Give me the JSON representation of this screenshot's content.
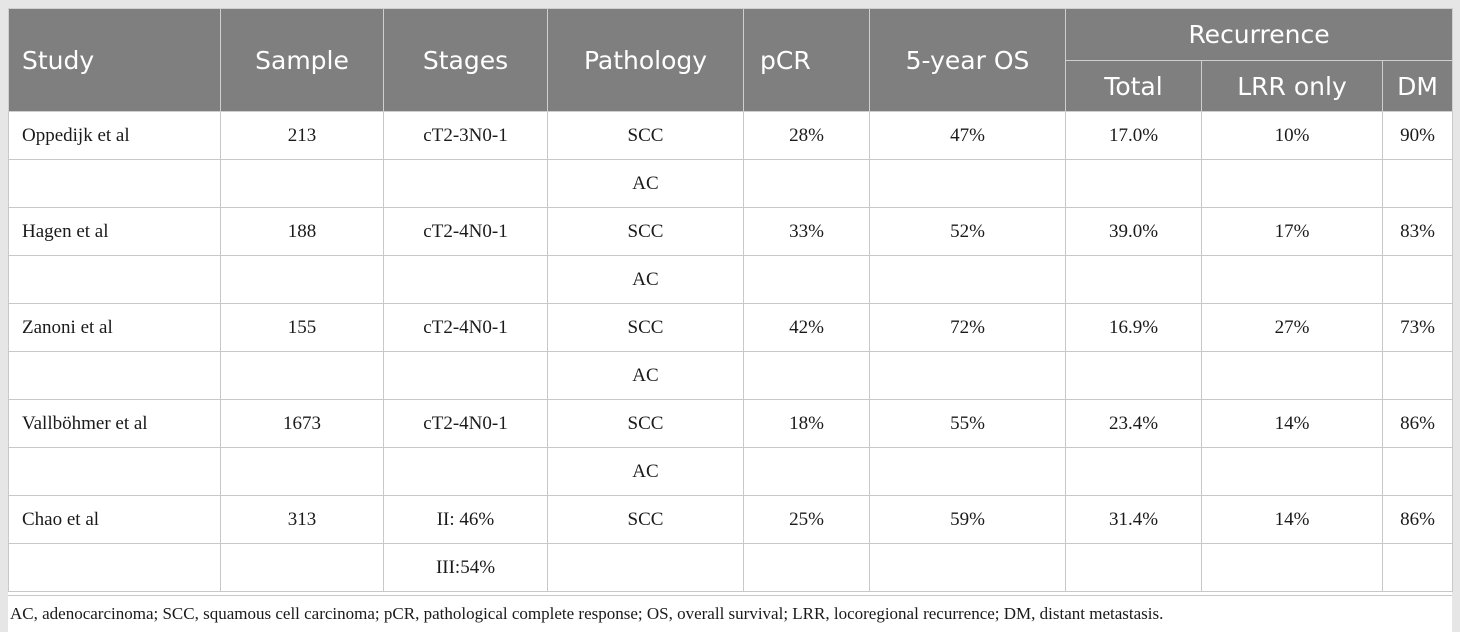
{
  "table": {
    "headers": {
      "study": "Study",
      "sample": "Sample",
      "stages": "Stages",
      "pathology": "Pathology",
      "pcr": "pCR",
      "os": "5-year OS",
      "recurrence": "Recurrence",
      "total": "Total",
      "lrr": "LRR only",
      "dm": "DM"
    },
    "rows": [
      {
        "study": "Oppedijk et al",
        "sample": "213",
        "stages": "cT2-3N0-1",
        "pathology": "SCC",
        "pcr": "28%",
        "os": "47%",
        "total": "17.0%",
        "lrr": "10%",
        "dm": "90%"
      },
      {
        "study": "",
        "sample": "",
        "stages": "",
        "pathology": "AC",
        "pcr": "",
        "os": "",
        "total": "",
        "lrr": "",
        "dm": ""
      },
      {
        "study": "Hagen et al",
        "sample": "188",
        "stages": "cT2-4N0-1",
        "pathology": "SCC",
        "pcr": "33%",
        "os": "52%",
        "total": "39.0%",
        "lrr": "17%",
        "dm": "83%"
      },
      {
        "study": "",
        "sample": "",
        "stages": "",
        "pathology": "AC",
        "pcr": "",
        "os": "",
        "total": "",
        "lrr": "",
        "dm": ""
      },
      {
        "study": "Zanoni et al",
        "sample": "155",
        "stages": "cT2-4N0-1",
        "pathology": "SCC",
        "pcr": "42%",
        "os": "72%",
        "total": "16.9%",
        "lrr": "27%",
        "dm": "73%"
      },
      {
        "study": "",
        "sample": "",
        "stages": "",
        "pathology": "AC",
        "pcr": "",
        "os": "",
        "total": "",
        "lrr": "",
        "dm": ""
      },
      {
        "study": "Vallböhmer et al",
        "sample": "1673",
        "stages": "cT2-4N0-1",
        "pathology": "SCC",
        "pcr": "18%",
        "os": "55%",
        "total": "23.4%",
        "lrr": "14%",
        "dm": "86%"
      },
      {
        "study": "",
        "sample": "",
        "stages": "",
        "pathology": "AC",
        "pcr": "",
        "os": "",
        "total": "",
        "lrr": "",
        "dm": ""
      },
      {
        "study": "Chao et al",
        "sample": "313",
        "stages": "II: 46%",
        "pathology": "SCC",
        "pcr": "25%",
        "os": "59%",
        "total": "31.4%",
        "lrr": "14%",
        "dm": "86%"
      },
      {
        "study": "",
        "sample": "",
        "stages": "III:54%",
        "pathology": "",
        "pcr": "",
        "os": "",
        "total": "",
        "lrr": "",
        "dm": ""
      }
    ]
  },
  "footnote": "AC, adenocarcinoma; SCC, squamous cell carcinoma; pCR, pathological complete response; OS, overall survival; LRR, locoregional recurrence; DM, distant metastasis."
}
